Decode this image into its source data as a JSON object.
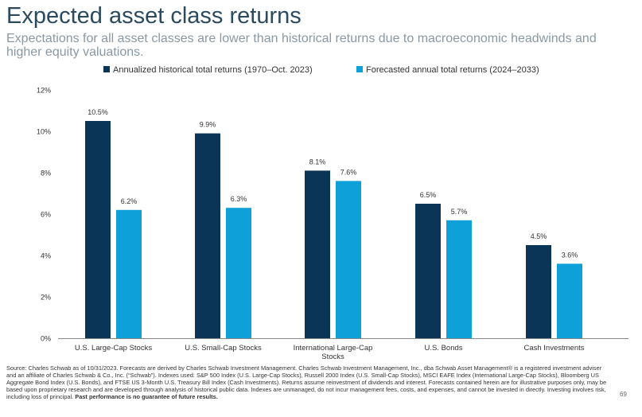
{
  "title": "Expected asset class returns",
  "subtitle": "Expectations for all asset classes are lower than historical returns due to macroeconomic headwinds and higher equity valuations.",
  "colors": {
    "historical": "#0b3556",
    "forecast": "#0ea0d8",
    "axis": "#333333",
    "grid": "#cccccc"
  },
  "chart_data": {
    "type": "bar",
    "categories": [
      "U.S. Large-Cap Stocks",
      "U.S. Small-Cap Stocks",
      "International Large-Cap Stocks",
      "U.S. Bonds",
      "Cash Investments"
    ],
    "category_lines": [
      [
        "U.S. Large-Cap Stocks"
      ],
      [
        "U.S. Small-Cap Stocks"
      ],
      [
        "International Large-Cap",
        "Stocks"
      ],
      [
        "U.S. Bonds"
      ],
      [
        "Cash Investments"
      ]
    ],
    "series": [
      {
        "name": "Annualized historical total returns (1970–Oct. 2023)",
        "values": [
          10.5,
          9.9,
          8.1,
          6.5,
          4.5
        ],
        "labels": [
          "10.5%",
          "9.9%",
          "8.1%",
          "6.5%",
          "4.5%"
        ]
      },
      {
        "name": "Forecasted annual total returns (2024–2033)",
        "values": [
          6.2,
          6.3,
          7.6,
          5.7,
          3.6
        ],
        "labels": [
          "6.2%",
          "6.3%",
          "7.6%",
          "5.7%",
          "3.6%"
        ]
      }
    ],
    "ylim": [
      0,
      12
    ],
    "yticks": [
      0,
      2,
      4,
      6,
      8,
      10,
      12
    ],
    "ytick_labels": [
      "0%",
      "2%",
      "4%",
      "6%",
      "8%",
      "10%",
      "12%"
    ],
    "legend_position": "top-center",
    "grid": false
  },
  "footnote": {
    "text": "Source: Charles Schwab as of 10/31/2023. Forecasts are derived by Charles Schwab Investment Management. Charles Schwab Investment Management, Inc., dba Schwab Asset Management® is a registered investment adviser and an affiliate of Charles Schwab & Co., Inc. (“Schwab”). Indexes used: S&P 500 Index (U.S. Large-Cap Stocks), Russell 2000 Index (U.S. Small-Cap Stocks), MSCI EAFE Index (International Large-Cap Stocks), Bloomberg US Aggregate Bond Index (U.S. Bonds), and FTSE US 3-Month U.S. Treasury Bill Index (Cash Investments). Returns assume reinvestment of dividends and interest. Forecasts contained herein are for illustrative purposes only, may be based upon proprietary research and are developed through analysis of historical public data. Indexes are unmanaged, do not incur management fees, costs, and expenses, and cannot be invested in directly. Investing involves risk, including loss of principal. ",
    "bold": "Past performance is no guarantee of future results."
  },
  "page_number": "69"
}
